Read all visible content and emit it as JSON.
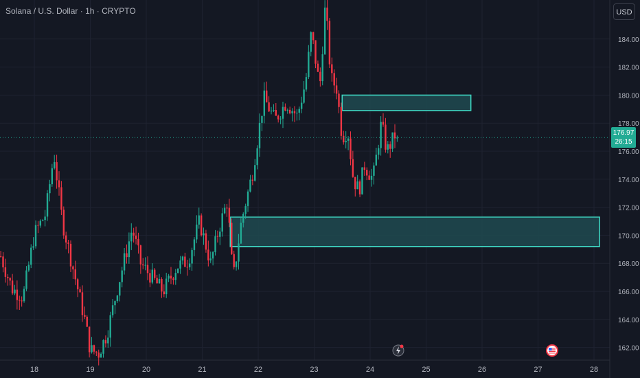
{
  "header": {
    "symbol": "Solana / U.S. Dollar",
    "interval": "1h",
    "exchange": "CRYPTO",
    "separator": " · "
  },
  "currency_button": "USD",
  "last_price": {
    "value": "176.97",
    "countdown": "26:15",
    "color": "#22ab94"
  },
  "icons": {
    "lightning": "lightning-event-icon",
    "flag": "us-flag-event-icon"
  },
  "colors": {
    "up": "#22ab94",
    "down": "#f23645",
    "zone_border": "#3fd8c3",
    "zone_fill": "#1f4a50",
    "background": "#141823",
    "grid": "#1e2230"
  },
  "chart_data": {
    "type": "candlestick",
    "title": "Solana / U.S. Dollar · 1h · CRYPTO",
    "x_axis": {
      "ticks": [
        "18",
        "19",
        "20",
        "21",
        "22",
        "23",
        "24",
        "25",
        "26",
        "27",
        "28"
      ],
      "range_days": [
        17.4,
        28.1
      ]
    },
    "y_axis": {
      "ticks": [
        162,
        164,
        166,
        168,
        170,
        172,
        174,
        176,
        178,
        180,
        182,
        184
      ],
      "ylim": [
        161.2,
        186.6
      ],
      "position": "right"
    },
    "last_price": 176.97,
    "zones": [
      {
        "name": "upper-zone",
        "x_start_day": 23.5,
        "x_end_day": 25.8,
        "y_low": 178.9,
        "y_high": 180.0
      },
      {
        "name": "lower-zone",
        "x_start_day": 21.5,
        "x_end_day": 28.1,
        "y_low": 169.2,
        "y_high": 171.3
      }
    ],
    "close_path": [
      [
        17.4,
        168.5
      ],
      [
        17.6,
        166.2
      ],
      [
        17.8,
        165.6
      ],
      [
        18.0,
        170.1
      ],
      [
        18.2,
        171.5
      ],
      [
        18.35,
        175.8
      ],
      [
        18.5,
        171.0
      ],
      [
        18.7,
        167.5
      ],
      [
        18.9,
        164.0
      ],
      [
        19.0,
        161.8
      ],
      [
        19.15,
        161.6
      ],
      [
        19.3,
        163.0
      ],
      [
        19.5,
        166.5
      ],
      [
        19.75,
        170.5
      ],
      [
        19.9,
        168.0
      ],
      [
        20.1,
        167.0
      ],
      [
        20.3,
        166.0
      ],
      [
        20.55,
        167.8
      ],
      [
        20.75,
        168.2
      ],
      [
        20.95,
        171.0
      ],
      [
        21.15,
        168.0
      ],
      [
        21.3,
        170.5
      ],
      [
        21.45,
        172.5
      ],
      [
        21.55,
        166.8
      ],
      [
        21.7,
        171.0
      ],
      [
        21.9,
        174.5
      ],
      [
        22.1,
        179.8
      ],
      [
        22.3,
        178.2
      ],
      [
        22.5,
        179.5
      ],
      [
        22.7,
        178.5
      ],
      [
        22.85,
        181.0
      ],
      [
        22.95,
        184.5
      ],
      [
        23.1,
        180.5
      ],
      [
        23.2,
        186.5
      ],
      [
        23.3,
        181.2
      ],
      [
        23.4,
        180.5
      ],
      [
        23.5,
        177.0
      ],
      [
        23.6,
        177.5
      ],
      [
        23.7,
        174.0
      ],
      [
        23.8,
        173.2
      ],
      [
        23.9,
        175.0
      ],
      [
        24.05,
        174.0
      ],
      [
        24.2,
        178.0
      ],
      [
        24.3,
        176.0
      ],
      [
        24.45,
        177.2
      ],
      [
        24.5,
        176.97
      ]
    ],
    "event_markers": [
      {
        "icon": "lightning",
        "day": 24.5
      },
      {
        "icon": "us-flag",
        "day": 27.25
      }
    ]
  }
}
